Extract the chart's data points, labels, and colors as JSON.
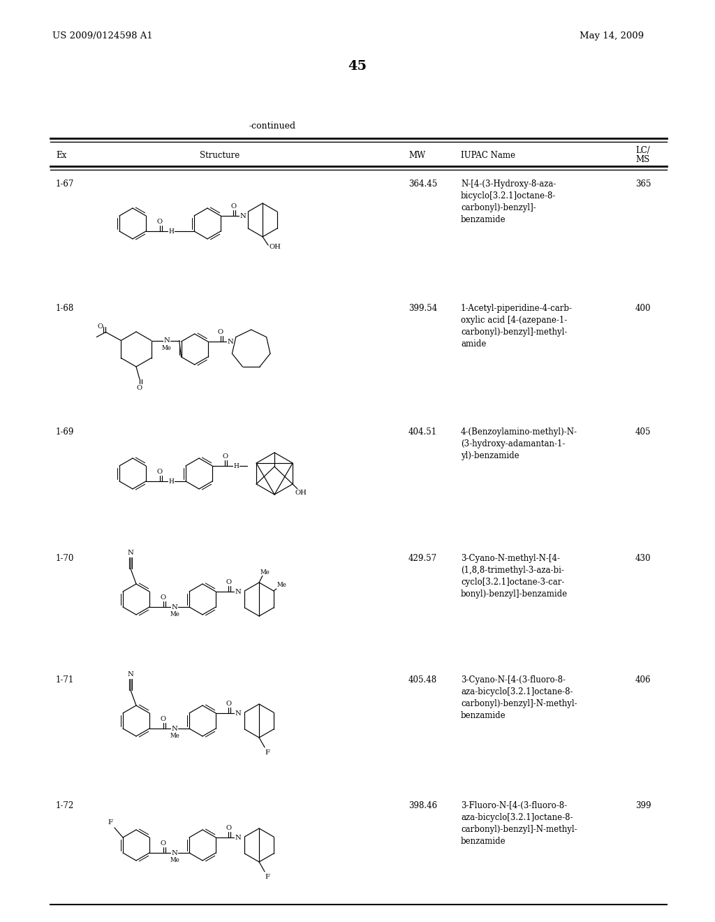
{
  "page_number": "45",
  "patent_number": "US 2009/0124598 A1",
  "patent_date": "May 14, 2009",
  "continued_label": "-continued",
  "rows": [
    {
      "ex": "1-67",
      "mw": "364.45",
      "iupac": "N-[4-(3-Hydroxy-8-aza-\nbicyclo[3.2.1]octane-8-\ncarbonyl)-benzyl]-\nbenzamide",
      "lcms": "365"
    },
    {
      "ex": "1-68",
      "mw": "399.54",
      "iupac": "1-Acetyl-piperidine-4-carb-\noxylic acid [4-(azepane-1-\ncarbonyl)-benzyl]-methyl-\namide",
      "lcms": "400"
    },
    {
      "ex": "1-69",
      "mw": "404.51",
      "iupac": "4-(Benzoylamino-methyl)-N-\n(3-hydroxy-adamantan-1-\nyl)-benzamide",
      "lcms": "405"
    },
    {
      "ex": "1-70",
      "mw": "429.57",
      "iupac": "3-Cyano-N-methyl-N-[4-\n(1,8,8-trimethyl-3-aza-bi-\ncyclo[3.2.1]octane-3-car-\nbonyl)-benzyl]-benzamide",
      "lcms": "430"
    },
    {
      "ex": "1-71",
      "mw": "405.48",
      "iupac": "3-Cyano-N-[4-(3-fluoro-8-\naza-bicyclo[3.2.1]octane-8-\ncarbonyl)-benzyl]-N-methyl-\nbenzamide",
      "lcms": "406"
    },
    {
      "ex": "1-72",
      "mw": "398.46",
      "iupac": "3-Fluoro-N-[4-(3-fluoro-8-\naza-bicyclo[3.2.1]octane-8-\ncarbonyl)-benzyl]-N-methyl-\nbenzamide",
      "lcms": "399"
    }
  ],
  "bg_color": "#ffffff",
  "text_color": "#000000"
}
